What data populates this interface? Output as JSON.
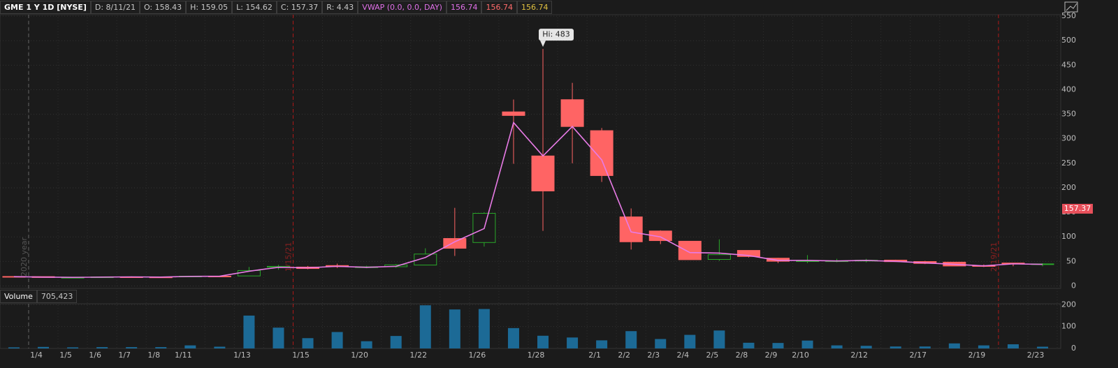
{
  "header": {
    "symbol": "GME 1 Y 1D [NYSE]",
    "items": [
      "D: 8/11/21",
      "O: 158.43",
      "H: 159.05",
      "L: 154.62",
      "C: 157.37",
      "R: 4.43"
    ],
    "study": "VWAP (0.0, 0.0, DAY)",
    "study_values": [
      156.74,
      156.74,
      156.74
    ],
    "study_colors": [
      "#e070e8",
      "#ff6b6b",
      "#e0c040"
    ]
  },
  "chart_data": [
    {
      "type": "candlestick",
      "categories": [
        null,
        "1/4",
        "1/5",
        "1/6",
        "1/7",
        "1/8",
        "1/11",
        null,
        "1/13",
        null,
        "1/15",
        null,
        "1/20",
        null,
        "1/22",
        null,
        "1/26",
        null,
        "1/28",
        null,
        "2/1",
        "2/2",
        "2/3",
        "2/4",
        "2/5",
        "2/8",
        "2/9",
        "2/10",
        null,
        "2/12",
        null,
        "2/17",
        null,
        "2/19",
        null,
        "2/23"
      ],
      "open": [
        19.25,
        19.0,
        17.35,
        17.34,
        18.47,
        18.18,
        19.41,
        19.96,
        20.42,
        38.09,
        38.49,
        41.55,
        37.37,
        39.23,
        42.59,
        96.73,
        88.56,
        354.83,
        265.0,
        379.71,
        316.56,
        140.76,
        112.01,
        91.19,
        54.04,
        72.41,
        56.61,
        50.77,
        50.01,
        50.75,
        52.66,
        49.77,
        48.49,
        41.28,
        46.69,
        44.97
      ],
      "high": [
        19.8,
        19.1,
        18.08,
        18.98,
        19.45,
        18.3,
        20.65,
        20.4,
        38.65,
        43.06,
        40.75,
        45.52,
        41.19,
        44.75,
        76.76,
        159.18,
        150.0,
        380.0,
        483,
        413.98,
        322.0,
        158.0,
        113.4,
        91.5,
        95.0,
        72.66,
        57.25,
        62.83,
        55.32,
        55.24,
        53.5,
        51.19,
        48.87,
        43.86,
        46.7,
        46.23
      ],
      "low": [
        18.8,
        17.15,
        17.23,
        17.33,
        18.02,
        17.08,
        19.01,
        19.32,
        20.03,
        33.05,
        34.01,
        36.64,
        36.06,
        37.0,
        42.32,
        61.13,
        80.2,
        249.0,
        112.25,
        250.0,
        212.0,
        74.22,
        85.25,
        53.33,
        51.09,
        58.02,
        46.52,
        46.55,
        48.22,
        48.05,
        49.04,
        44.56,
        40.65,
        38.5,
        40.19,
        40.0
      ],
      "close": [
        18.84,
        17.25,
        17.37,
        18.36,
        18.08,
        17.69,
        19.94,
        19.95,
        31.4,
        39.91,
        35.5,
        39.36,
        39.12,
        43.03,
        65.01,
        76.79,
        147.98,
        347.51,
        193.6,
        325.0,
        225.0,
        90.0,
        92.41,
        53.5,
        63.77,
        60.0,
        50.31,
        51.2,
        51.1,
        52.4,
        49.51,
        45.94,
        40.69,
        40.59,
        46.0,
        44.97
      ],
      "up_color": "#2aa82a",
      "down_color": "#ff6464",
      "vwap": {
        "color": "#e87be6",
        "values": [
          19,
          18,
          17.5,
          18,
          18.5,
          18,
          19.5,
          19.8,
          30,
          38,
          37,
          40,
          38,
          40,
          58,
          90,
          117,
          333,
          265,
          325,
          257,
          110,
          100,
          68,
          67,
          62,
          52,
          52,
          51,
          52,
          50,
          47,
          44,
          41,
          45,
          44
        ]
      },
      "ylim": [
        -5,
        553
      ],
      "yticks": [
        0,
        50,
        100,
        150,
        200,
        250,
        300,
        350,
        400,
        450,
        500,
        550
      ],
      "grid": true,
      "last_price": 157.37,
      "high_label": "Hi: 483",
      "annotations": [
        "2020 year",
        "1/15/21",
        "2/19/21"
      ]
    },
    {
      "type": "bar",
      "title": "Volume",
      "current": "705,423",
      "values": [
        5,
        7,
        5,
        6,
        6,
        6,
        14,
        8,
        150,
        95,
        47,
        75,
        33,
        57,
        197,
        178,
        180,
        93,
        58,
        50,
        37,
        79,
        43,
        62,
        82,
        26,
        25,
        36,
        14,
        12,
        9,
        9,
        23,
        14,
        19,
        8
      ],
      "color": "#1c6a96",
      "ylim": [
        0,
        204
      ],
      "yticks": [
        0,
        100,
        200
      ],
      "grid": true
    }
  ]
}
